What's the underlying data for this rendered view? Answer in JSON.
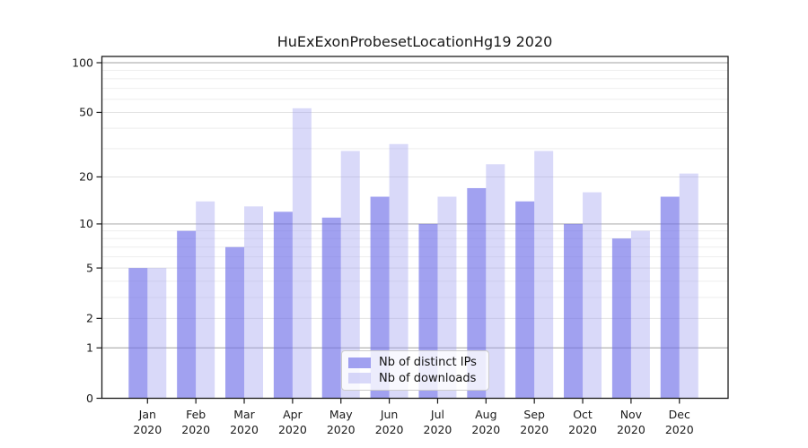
{
  "chart_data": {
    "type": "bar",
    "title": "HuExExonProbesetLocationHg19 2020",
    "categories": [
      "Jan",
      "Feb",
      "Mar",
      "Apr",
      "May",
      "Jun",
      "Jul",
      "Aug",
      "Sep",
      "Oct",
      "Nov",
      "Dec"
    ],
    "category_year": "2020",
    "series": [
      {
        "name": "Nb of distinct IPs",
        "color": "#a0a0f0",
        "fill": "rgba(110,110,232,0.65)",
        "values": [
          5,
          9,
          7,
          12,
          11,
          15,
          10,
          17,
          14,
          10,
          8,
          15
        ]
      },
      {
        "name": "Nb of downloads",
        "color": "#d9d9f9",
        "fill": "rgba(160,160,240,0.4)",
        "values": [
          5,
          14,
          13,
          53,
          29,
          32,
          15,
          24,
          29,
          16,
          9,
          21
        ]
      }
    ],
    "xlabel": "",
    "ylabel": "",
    "yscale": "log1p",
    "ylim": [
      0,
      110
    ],
    "yticks": [
      0,
      1,
      2,
      5,
      10,
      20,
      50,
      100
    ],
    "minor_gridlines": [
      3,
      4,
      6,
      7,
      8,
      9,
      30,
      40,
      60,
      70,
      80,
      90
    ],
    "grid": "on",
    "legend_position": "lower-center-inside",
    "colors": {
      "axis": "#1a1a1a",
      "grid_power10": "#b3b3b3",
      "grid_major": "#e2e2e2",
      "grid_minor": "#eeeeee"
    }
  }
}
